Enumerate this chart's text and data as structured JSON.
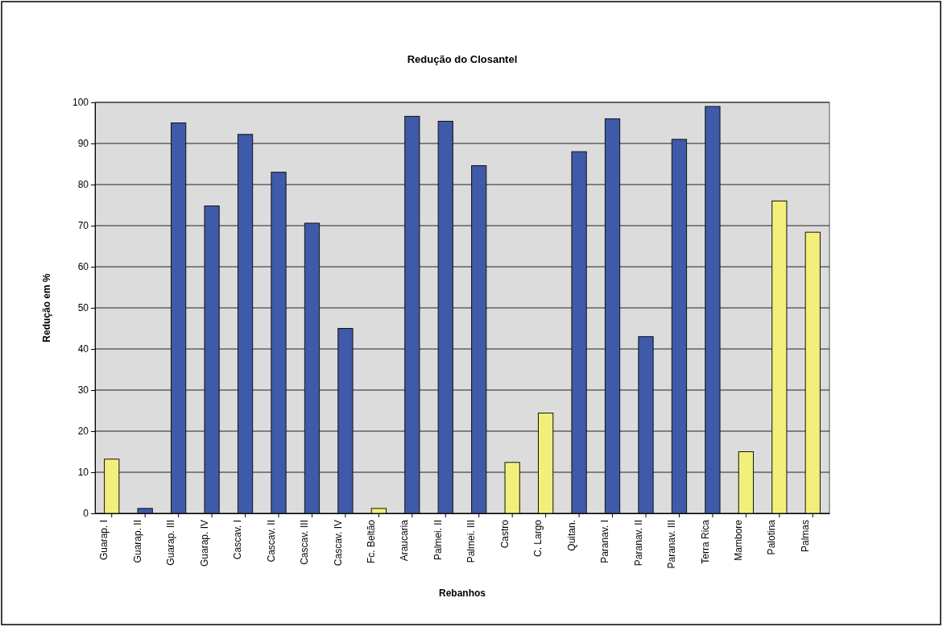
{
  "chart_data": {
    "type": "bar",
    "title": "Redução do Closantel",
    "xlabel": "Rebanhos",
    "ylabel": "Redução em %",
    "categories": [
      "Guarap. I",
      "Guarap. II",
      "Guarap. III",
      "Guarap. IV",
      "Cascav. I",
      "Cascav. II",
      "Cascav. III",
      "Cascav. IV",
      "Fc. Beltão",
      "Araucaria",
      "Palmei. II",
      "Palmei. III",
      "Castro",
      "C. Largo",
      "Quitan.",
      "Paranav. I",
      "Paranav. II",
      "Paranav. III",
      "Terra Rica",
      "Mambore",
      "Palotina",
      "Palmas"
    ],
    "values": [
      13.2,
      1.2,
      95,
      74.8,
      92.2,
      83,
      70.6,
      45,
      1.2,
      96.6,
      95.4,
      84.6,
      12.4,
      24.4,
      88,
      96,
      43,
      91,
      99,
      15,
      76,
      68.4
    ],
    "colors": [
      "#f2f07a",
      "#3f5aa8",
      "#3f5aa8",
      "#3f5aa8",
      "#3f5aa8",
      "#3f5aa8",
      "#3f5aa8",
      "#3f5aa8",
      "#f2f07a",
      "#3f5aa8",
      "#3f5aa8",
      "#3f5aa8",
      "#f2f07a",
      "#f2f07a",
      "#3f5aa8",
      "#3f5aa8",
      "#3f5aa8",
      "#3f5aa8",
      "#3f5aa8",
      "#f2f07a",
      "#f2f07a",
      "#f2f07a"
    ],
    "ylim": [
      0,
      100
    ],
    "yticks": [
      0,
      10,
      20,
      30,
      40,
      50,
      60,
      70,
      80,
      90,
      100
    ],
    "grid": "y"
  }
}
